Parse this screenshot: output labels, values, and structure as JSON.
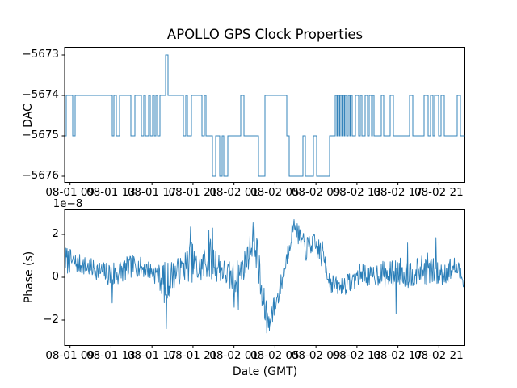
{
  "title": "APOLLO GPS Clock Properties",
  "background_color": "#ffffff",
  "chart_data": [
    {
      "type": "line",
      "subtype": "step",
      "title": "",
      "ylabel": "DAC",
      "line_color": "#1f77b4",
      "yticks": [
        -5673,
        -5674,
        -5675,
        -5676
      ],
      "ytick_labels": [
        "−5673",
        "−5674",
        "−5675",
        "−5676"
      ],
      "ylim": [
        -5676.2,
        -5672.8
      ],
      "grid": false,
      "x_tick_labels": [
        "08-01 09",
        "08-01 13",
        "08-01 17",
        "08-01 21",
        "08-02 01",
        "08-02 05",
        "08-02 09",
        "08-02 13",
        "08-02 17",
        "08-02 21"
      ],
      "steps": [
        [
          0.0,
          -5675
        ],
        [
          0.004,
          -5674
        ],
        [
          0.0202,
          -5675
        ],
        [
          0.0262,
          -5674
        ],
        [
          0.1191,
          -5675
        ],
        [
          0.1231,
          -5674
        ],
        [
          0.1292,
          -5675
        ],
        [
          0.1372,
          -5674
        ],
        [
          0.1655,
          -5675
        ],
        [
          0.1756,
          -5674
        ],
        [
          0.1917,
          -5675
        ],
        [
          0.1978,
          -5674
        ],
        [
          0.2018,
          -5675
        ],
        [
          0.2099,
          -5674
        ],
        [
          0.2139,
          -5675
        ],
        [
          0.22,
          -5674
        ],
        [
          0.224,
          -5675
        ],
        [
          0.2281,
          -5674
        ],
        [
          0.2321,
          -5675
        ],
        [
          0.2381,
          -5674
        ],
        [
          0.2523,
          -5673
        ],
        [
          0.2583,
          -5674
        ],
        [
          0.2967,
          -5675
        ],
        [
          0.3027,
          -5674
        ],
        [
          0.3068,
          -5675
        ],
        [
          0.3169,
          -5674
        ],
        [
          0.3431,
          -5675
        ],
        [
          0.3492,
          -5674
        ],
        [
          0.3532,
          -5675
        ],
        [
          0.3693,
          -5676
        ],
        [
          0.3774,
          -5675
        ],
        [
          0.3875,
          -5676
        ],
        [
          0.3936,
          -5675
        ],
        [
          0.3976,
          -5676
        ],
        [
          0.4077,
          -5675
        ],
        [
          0.44,
          -5674
        ],
        [
          0.448,
          -5675
        ],
        [
          0.4844,
          -5676
        ],
        [
          0.5005,
          -5674
        ],
        [
          0.555,
          -5675
        ],
        [
          0.5611,
          -5676
        ],
        [
          0.5954,
          -5675
        ],
        [
          0.6014,
          -5676
        ],
        [
          0.6216,
          -5675
        ],
        [
          0.6297,
          -5676
        ],
        [
          0.662,
          -5675
        ],
        [
          0.6761,
          -5674
        ],
        [
          0.6801,
          -5675
        ],
        [
          0.6822,
          -5674
        ],
        [
          0.6862,
          -5675
        ],
        [
          0.6882,
          -5674
        ],
        [
          0.6923,
          -5675
        ],
        [
          0.6943,
          -5674
        ],
        [
          0.6983,
          -5675
        ],
        [
          0.7003,
          -5674
        ],
        [
          0.7044,
          -5675
        ],
        [
          0.7084,
          -5674
        ],
        [
          0.7124,
          -5675
        ],
        [
          0.7145,
          -5674
        ],
        [
          0.7185,
          -5675
        ],
        [
          0.7266,
          -5674
        ],
        [
          0.7346,
          -5675
        ],
        [
          0.7387,
          -5674
        ],
        [
          0.7427,
          -5675
        ],
        [
          0.7508,
          -5674
        ],
        [
          0.7568,
          -5675
        ],
        [
          0.7609,
          -5674
        ],
        [
          0.7669,
          -5675
        ],
        [
          0.7689,
          -5674
        ],
        [
          0.773,
          -5675
        ],
        [
          0.7911,
          -5674
        ],
        [
          0.7972,
          -5675
        ],
        [
          0.8133,
          -5674
        ],
        [
          0.8214,
          -5675
        ],
        [
          0.8618,
          -5674
        ],
        [
          0.8698,
          -5675
        ],
        [
          0.8981,
          -5674
        ],
        [
          0.9082,
          -5675
        ],
        [
          0.9142,
          -5674
        ],
        [
          0.9203,
          -5675
        ],
        [
          0.9243,
          -5674
        ],
        [
          0.9344,
          -5675
        ],
        [
          0.9405,
          -5674
        ],
        [
          0.9485,
          -5675
        ],
        [
          0.9808,
          -5674
        ],
        [
          0.9889,
          -5675
        ],
        [
          1.0,
          -5675
        ]
      ]
    },
    {
      "type": "line",
      "subtype": "noisy",
      "title": "",
      "ylabel": "Phase (s)",
      "xlabel": "Date (GMT)",
      "offset_text": "1e−8",
      "scale_factor": 1e-08,
      "line_color": "#1f77b4",
      "yticks": [
        2,
        0,
        -2
      ],
      "ytick_labels": [
        "2",
        "0",
        "−2"
      ],
      "ylim": [
        -3.17,
        3.17
      ],
      "grid": false,
      "noise_seed": 7,
      "x_tick_labels": [
        "08-01 09",
        "08-01 13",
        "08-01 17",
        "08-01 21",
        "08-02 01",
        "08-02 05",
        "08-02 09",
        "08-02 13",
        "08-02 17",
        "08-02 21"
      ],
      "envelope": [
        [
          0.0,
          0.8,
          0.7
        ],
        [
          0.02,
          0.7,
          0.5
        ],
        [
          0.061,
          0.45,
          0.45
        ],
        [
          0.101,
          0.2,
          0.5
        ],
        [
          0.117,
          0.1,
          0.75
        ],
        [
          0.141,
          0.3,
          0.6
        ],
        [
          0.172,
          0.55,
          0.5
        ],
        [
          0.202,
          0.4,
          0.45
        ],
        [
          0.232,
          0.1,
          0.5
        ],
        [
          0.252,
          -0.35,
          1.1
        ],
        [
          0.266,
          0.1,
          0.7
        ],
        [
          0.293,
          0.4,
          0.6
        ],
        [
          0.313,
          0.8,
          1.0
        ],
        [
          0.333,
          0.3,
          0.7
        ],
        [
          0.359,
          0.9,
          1.0
        ],
        [
          0.375,
          0.7,
          0.9
        ],
        [
          0.394,
          0.3,
          0.6
        ],
        [
          0.42,
          -0.1,
          0.8
        ],
        [
          0.436,
          0.2,
          0.7
        ],
        [
          0.454,
          0.8,
          0.7
        ],
        [
          0.47,
          1.8,
          0.7
        ],
        [
          0.48,
          1.1,
          0.9
        ],
        [
          0.492,
          -1.0,
          1.0
        ],
        [
          0.505,
          -1.9,
          0.7
        ],
        [
          0.519,
          -1.6,
          0.6
        ],
        [
          0.535,
          -0.7,
          0.5
        ],
        [
          0.551,
          0.6,
          0.5
        ],
        [
          0.565,
          2.0,
          0.5
        ],
        [
          0.573,
          2.5,
          0.3
        ],
        [
          0.585,
          1.9,
          0.5
        ],
        [
          0.601,
          1.3,
          0.6
        ],
        [
          0.618,
          1.6,
          0.5
        ],
        [
          0.634,
          1.3,
          0.6
        ],
        [
          0.65,
          0.8,
          0.7
        ],
        [
          0.662,
          -0.2,
          0.5
        ],
        [
          0.682,
          -0.45,
          0.4
        ],
        [
          0.702,
          -0.35,
          0.45
        ],
        [
          0.722,
          -0.1,
          0.5
        ],
        [
          0.743,
          0.25,
          0.5
        ],
        [
          0.763,
          0.0,
          0.5
        ],
        [
          0.787,
          0.2,
          0.6
        ],
        [
          0.811,
          0.1,
          0.65
        ],
        [
          0.836,
          0.3,
          0.65
        ],
        [
          0.86,
          0.15,
          0.7
        ],
        [
          0.884,
          0.3,
          0.6
        ],
        [
          0.908,
          0.4,
          0.8
        ],
        [
          0.932,
          0.1,
          0.6
        ],
        [
          0.957,
          0.3,
          0.6
        ],
        [
          0.977,
          0.45,
          0.55
        ],
        [
          0.989,
          0.1,
          0.5
        ],
        [
          1.0,
          -0.1,
          0.4
        ]
      ],
      "spikes": [
        [
          0.117,
          -1.2
        ],
        [
          0.252,
          -2.4
        ],
        [
          0.3125,
          2.35
        ],
        [
          0.359,
          2.2
        ],
        [
          0.368,
          2.3
        ],
        [
          0.423,
          -1.4
        ],
        [
          0.4335,
          -1.5
        ],
        [
          0.47,
          2.55
        ],
        [
          0.504,
          -2.6
        ],
        [
          0.511,
          -2.5
        ],
        [
          0.573,
          2.7
        ],
        [
          0.622,
          1.95
        ],
        [
          0.827,
          -1.7
        ],
        [
          0.857,
          1.6
        ],
        [
          0.928,
          1.85
        ]
      ]
    }
  ]
}
